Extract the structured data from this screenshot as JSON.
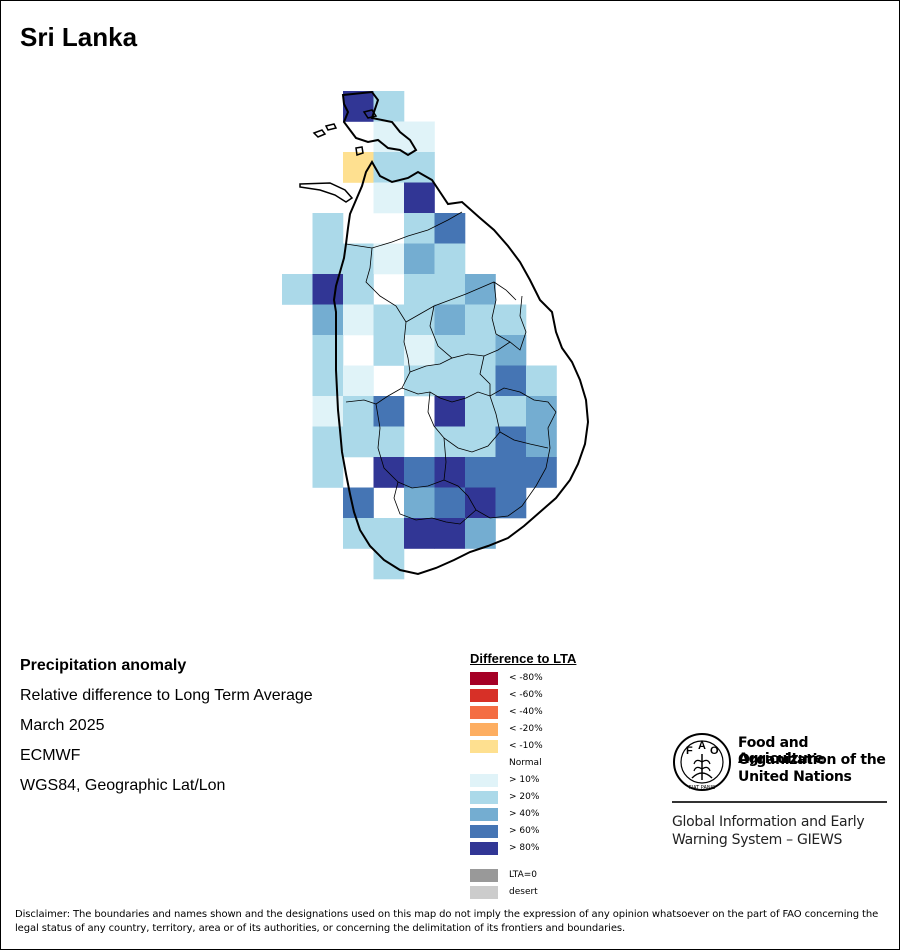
{
  "title": "Sri Lanka",
  "info": {
    "heading": "Precipitation anomaly",
    "subheading": "Relative difference to Long Term Average",
    "period": "March 2025",
    "source": "ECMWF",
    "projection": "WGS84, Geographic Lat/Lon"
  },
  "legend": {
    "title": "Difference to LTA",
    "items": [
      {
        "label": "< -80%",
        "color": "#a50026"
      },
      {
        "label": "< -60%",
        "color": "#d73027"
      },
      {
        "label": "< -40%",
        "color": "#f46d43"
      },
      {
        "label": "< -20%",
        "color": "#fdae61"
      },
      {
        "label": "< -10%",
        "color": "#fee090"
      },
      {
        "label": "Normal",
        "color": "#ffffff"
      },
      {
        "label": "> 10%",
        "color": "#e0f3f8"
      },
      {
        "label": "> 20%",
        "color": "#abd9e9"
      },
      {
        "label": "> 40%",
        "color": "#74add1"
      },
      {
        "label": "> 60%",
        "color": "#4575b4"
      },
      {
        "label": "> 80%",
        "color": "#313695"
      }
    ],
    "extra": [
      {
        "label": "LTA=0",
        "color": "#999999"
      },
      {
        "label": "desert",
        "color": "#cccccc"
      }
    ]
  },
  "org": {
    "emblem_letters": [
      "F",
      "A",
      "O"
    ],
    "emblem_motto": "FIAT PANIS",
    "name_lines": [
      "Food and Agriculture",
      "Organization of the",
      "United Nations"
    ],
    "program_lines": [
      "Global Information and Early",
      "Warning System – GIEWS"
    ]
  },
  "disclaimer": "Disclaimer: The boundaries and names shown and the designations used on this map do not imply the expression of any opinion whatsoever on the part of FAO concerning the legal status of any country, territory, area or of its authorities, or concerning the delimitation of its frontiers and boundaries.",
  "map_grid": {
    "cell_size_deg": 0.25,
    "cells": [
      {
        "lon": 80.0,
        "lat": 9.75,
        "class": "> 80%"
      },
      {
        "lon": 80.25,
        "lat": 9.75,
        "class": "> 20%"
      },
      {
        "lon": 80.25,
        "lat": 9.5,
        "class": "> 10%"
      },
      {
        "lon": 80.5,
        "lat": 9.5,
        "class": "> 10%"
      },
      {
        "lon": 80.0,
        "lat": 9.25,
        "class": "< -10%"
      },
      {
        "lon": 80.25,
        "lat": 9.25,
        "class": "> 20%"
      },
      {
        "lon": 80.5,
        "lat": 9.25,
        "class": "> 20%"
      },
      {
        "lon": 80.25,
        "lat": 9.0,
        "class": "> 10%"
      },
      {
        "lon": 80.5,
        "lat": 9.0,
        "class": "> 80%"
      },
      {
        "lon": 79.75,
        "lat": 8.75,
        "class": "> 20%"
      },
      {
        "lon": 80.5,
        "lat": 8.75,
        "class": "> 20%"
      },
      {
        "lon": 80.75,
        "lat": 8.75,
        "class": "> 60%"
      },
      {
        "lon": 79.75,
        "lat": 8.5,
        "class": "> 20%"
      },
      {
        "lon": 80.0,
        "lat": 8.5,
        "class": "> 20%"
      },
      {
        "lon": 80.25,
        "lat": 8.5,
        "class": "> 10%"
      },
      {
        "lon": 80.5,
        "lat": 8.5,
        "class": "> 40%"
      },
      {
        "lon": 80.75,
        "lat": 8.5,
        "class": "> 20%"
      },
      {
        "lon": 79.5,
        "lat": 8.25,
        "class": "> 20%"
      },
      {
        "lon": 79.75,
        "lat": 8.25,
        "class": "> 80%"
      },
      {
        "lon": 80.0,
        "lat": 8.25,
        "class": "> 20%"
      },
      {
        "lon": 80.5,
        "lat": 8.25,
        "class": "> 20%"
      },
      {
        "lon": 80.75,
        "lat": 8.25,
        "class": "> 20%"
      },
      {
        "lon": 81.0,
        "lat": 8.25,
        "class": "> 40%"
      },
      {
        "lon": 79.75,
        "lat": 8.0,
        "class": "> 40%"
      },
      {
        "lon": 80.0,
        "lat": 8.0,
        "class": "> 10%"
      },
      {
        "lon": 80.25,
        "lat": 8.0,
        "class": "> 20%"
      },
      {
        "lon": 80.5,
        "lat": 8.0,
        "class": "> 20%"
      },
      {
        "lon": 80.75,
        "lat": 8.0,
        "class": "> 40%"
      },
      {
        "lon": 81.0,
        "lat": 8.0,
        "class": "> 20%"
      },
      {
        "lon": 81.25,
        "lat": 8.0,
        "class": "> 20%"
      },
      {
        "lon": 79.75,
        "lat": 7.75,
        "class": "> 20%"
      },
      {
        "lon": 80.25,
        "lat": 7.75,
        "class": "> 20%"
      },
      {
        "lon": 80.5,
        "lat": 7.75,
        "class": "> 10%"
      },
      {
        "lon": 80.75,
        "lat": 7.75,
        "class": "> 20%"
      },
      {
        "lon": 81.0,
        "lat": 7.75,
        "class": "> 20%"
      },
      {
        "lon": 81.25,
        "lat": 7.75,
        "class": "> 40%"
      },
      {
        "lon": 79.75,
        "lat": 7.5,
        "class": "> 20%"
      },
      {
        "lon": 80.0,
        "lat": 7.5,
        "class": "> 10%"
      },
      {
        "lon": 80.5,
        "lat": 7.5,
        "class": "> 20%"
      },
      {
        "lon": 80.75,
        "lat": 7.5,
        "class": "> 20%"
      },
      {
        "lon": 81.0,
        "lat": 7.5,
        "class": "> 20%"
      },
      {
        "lon": 81.25,
        "lat": 7.5,
        "class": "> 60%"
      },
      {
        "lon": 81.5,
        "lat": 7.5,
        "class": "> 20%"
      },
      {
        "lon": 79.75,
        "lat": 7.25,
        "class": "> 10%"
      },
      {
        "lon": 80.0,
        "lat": 7.25,
        "class": "> 20%"
      },
      {
        "lon": 80.25,
        "lat": 7.25,
        "class": "> 60%"
      },
      {
        "lon": 80.75,
        "lat": 7.25,
        "class": "> 80%"
      },
      {
        "lon": 81.0,
        "lat": 7.25,
        "class": "> 20%"
      },
      {
        "lon": 81.25,
        "lat": 7.25,
        "class": "> 20%"
      },
      {
        "lon": 81.5,
        "lat": 7.25,
        "class": "> 40%"
      },
      {
        "lon": 79.75,
        "lat": 7.0,
        "class": "> 20%"
      },
      {
        "lon": 80.0,
        "lat": 7.0,
        "class": "> 20%"
      },
      {
        "lon": 80.25,
        "lat": 7.0,
        "class": "> 20%"
      },
      {
        "lon": 80.75,
        "lat": 7.0,
        "class": "> 20%"
      },
      {
        "lon": 81.0,
        "lat": 7.0,
        "class": "> 20%"
      },
      {
        "lon": 81.25,
        "lat": 7.0,
        "class": "> 60%"
      },
      {
        "lon": 81.5,
        "lat": 7.0,
        "class": "> 40%"
      },
      {
        "lon": 79.75,
        "lat": 6.75,
        "class": "> 20%"
      },
      {
        "lon": 80.25,
        "lat": 6.75,
        "class": "> 80%"
      },
      {
        "lon": 80.5,
        "lat": 6.75,
        "class": "> 60%"
      },
      {
        "lon": 80.75,
        "lat": 6.75,
        "class": "> 80%"
      },
      {
        "lon": 81.0,
        "lat": 6.75,
        "class": "> 60%"
      },
      {
        "lon": 81.25,
        "lat": 6.75,
        "class": "> 60%"
      },
      {
        "lon": 81.5,
        "lat": 6.75,
        "class": "> 60%"
      },
      {
        "lon": 80.0,
        "lat": 6.5,
        "class": "> 60%"
      },
      {
        "lon": 80.5,
        "lat": 6.5,
        "class": "> 40%"
      },
      {
        "lon": 80.75,
        "lat": 6.5,
        "class": "> 60%"
      },
      {
        "lon": 81.0,
        "lat": 6.5,
        "class": "> 80%"
      },
      {
        "lon": 81.25,
        "lat": 6.5,
        "class": "> 60%"
      },
      {
        "lon": 80.0,
        "lat": 6.25,
        "class": "> 20%"
      },
      {
        "lon": 80.25,
        "lat": 6.25,
        "class": "> 20%"
      },
      {
        "lon": 80.5,
        "lat": 6.25,
        "class": "> 80%"
      },
      {
        "lon": 80.75,
        "lat": 6.25,
        "class": "> 80%"
      },
      {
        "lon": 81.0,
        "lat": 6.25,
        "class": "> 40%"
      },
      {
        "lon": 80.25,
        "lat": 6.0,
        "class": "> 20%"
      }
    ]
  }
}
